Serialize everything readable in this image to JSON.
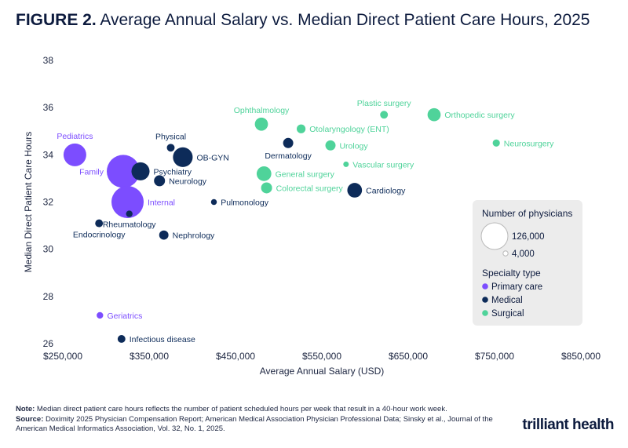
{
  "header": {
    "figure_label": "FIGURE 2.",
    "title_text": "Average Annual Salary vs. Median Direct Patient Care Hours, 2025"
  },
  "notes": {
    "note_label": "Note:",
    "note_text": "Median direct patient care hours reflects the number of patient scheduled hours per week that result in a 40-hour work week.",
    "source_label": "Source:",
    "source_text": "Doximity 2025 Physician Compensation Report; American Medical Association Physician Professional Data; Sinsky et al., Journal of the American Medical Informatics Association, Vol. 32, No. 1, 2025."
  },
  "brand": {
    "logo_text": "trilliant health"
  },
  "colors": {
    "primary": "#7c4dff",
    "medical": "#0d2b59",
    "surgical": "#4fd39a"
  },
  "chart_data": {
    "type": "scatter",
    "title": "Average Annual Salary vs. Median Direct Patient Care Hours, 2025",
    "xlabel": "Average Annual Salary (USD)",
    "ylabel": "Median Direct Patient Care Hours",
    "xlim": [
      250000,
      850000
    ],
    "ylim": [
      26,
      38
    ],
    "xticks": [
      250000,
      350000,
      450000,
      550000,
      650000,
      750000,
      850000
    ],
    "xtick_labels": [
      "$250,000",
      "$350,000",
      "$450,000",
      "$550,000",
      "$650,000",
      "$750,000",
      "$850,000"
    ],
    "yticks": [
      26,
      28,
      30,
      32,
      34,
      36,
      38
    ],
    "ytick_labels": [
      "26",
      "28",
      "30",
      "32",
      "34",
      "36",
      "38"
    ],
    "grid": false,
    "legend": {
      "placement": "right",
      "size_title": "Number of physicians",
      "size_items": [
        {
          "label": "126,000",
          "value": 126000
        },
        {
          "label": "4,000",
          "value": 4000
        }
      ],
      "color_title": "Specialty type",
      "color_items": [
        {
          "label": "Primary care",
          "color": "#7c4dff"
        },
        {
          "label": "Medical",
          "color": "#0d2b59"
        },
        {
          "label": "Surgical",
          "color": "#4fd39a"
        }
      ]
    },
    "points": [
      {
        "name": "Pediatrics",
        "type": "Primary care",
        "x": 264000,
        "y": 34.0,
        "size": 60000,
        "label_pos": "above"
      },
      {
        "name": "Family",
        "type": "Primary care",
        "x": 320000,
        "y": 33.3,
        "size": 126000,
        "label_pos": "left"
      },
      {
        "name": "Internal",
        "type": "Primary care",
        "x": 325000,
        "y": 32.0,
        "size": 120000,
        "label_pos": "right"
      },
      {
        "name": "Geriatrics",
        "type": "Primary care",
        "x": 293000,
        "y": 27.2,
        "size": 5000,
        "label_pos": "right"
      },
      {
        "name": "Physical",
        "type": "Medical",
        "x": 375000,
        "y": 34.3,
        "size": 7000,
        "label_pos": "above"
      },
      {
        "name": "OB-GYN",
        "type": "Medical",
        "x": 389000,
        "y": 33.9,
        "size": 45000,
        "label_pos": "right"
      },
      {
        "name": "Psychiatry",
        "type": "Medical",
        "x": 340000,
        "y": 33.3,
        "size": 38000,
        "label_pos": "right"
      },
      {
        "name": "Neurology",
        "type": "Medical",
        "x": 362000,
        "y": 32.9,
        "size": 14000,
        "label_pos": "right"
      },
      {
        "name": "Pulmonology",
        "type": "Medical",
        "x": 425000,
        "y": 32.0,
        "size": 4000,
        "label_pos": "right"
      },
      {
        "name": "Endocrinology",
        "type": "Medical",
        "x": 292000,
        "y": 31.1,
        "size": 7000,
        "label_pos": "below"
      },
      {
        "name": "Rheumatology",
        "type": "Medical",
        "x": 327000,
        "y": 31.5,
        "size": 5000,
        "label_pos": "below"
      },
      {
        "name": "Nephrology",
        "type": "Medical",
        "x": 367000,
        "y": 30.6,
        "size": 10000,
        "label_pos": "right"
      },
      {
        "name": "Infectious disease",
        "type": "Medical",
        "x": 318000,
        "y": 26.2,
        "size": 7000,
        "label_pos": "right"
      },
      {
        "name": "Dermatology",
        "type": "Medical",
        "x": 511000,
        "y": 34.5,
        "size": 12000,
        "label_pos": "below"
      },
      {
        "name": "Cardiology",
        "type": "Medical",
        "x": 588000,
        "y": 32.5,
        "size": 25000,
        "label_pos": "right"
      },
      {
        "name": "Ophthalmology",
        "type": "Surgical",
        "x": 480000,
        "y": 35.3,
        "size": 20000,
        "label_pos": "above"
      },
      {
        "name": "Otolaryngology (ENT)",
        "type": "Surgical",
        "x": 526000,
        "y": 35.1,
        "size": 9000,
        "label_pos": "right"
      },
      {
        "name": "Plastic surgery",
        "type": "Surgical",
        "x": 622000,
        "y": 35.7,
        "size": 7000,
        "label_pos": "above"
      },
      {
        "name": "Orthopedic surgery",
        "type": "Surgical",
        "x": 680000,
        "y": 35.7,
        "size": 20000,
        "label_pos": "right"
      },
      {
        "name": "Urology",
        "type": "Surgical",
        "x": 560000,
        "y": 34.4,
        "size": 12000,
        "label_pos": "right"
      },
      {
        "name": "Neurosurgery",
        "type": "Surgical",
        "x": 752000,
        "y": 34.5,
        "size": 6000,
        "label_pos": "right"
      },
      {
        "name": "Vascular surgery",
        "type": "Surgical",
        "x": 578000,
        "y": 33.6,
        "size": 3500,
        "label_pos": "right"
      },
      {
        "name": "General surgery",
        "type": "Surgical",
        "x": 483000,
        "y": 33.2,
        "size": 25000,
        "label_pos": "right"
      },
      {
        "name": "Colorectal surgery",
        "type": "Surgical",
        "x": 486000,
        "y": 32.6,
        "size": 14000,
        "label_pos": "right"
      }
    ]
  }
}
